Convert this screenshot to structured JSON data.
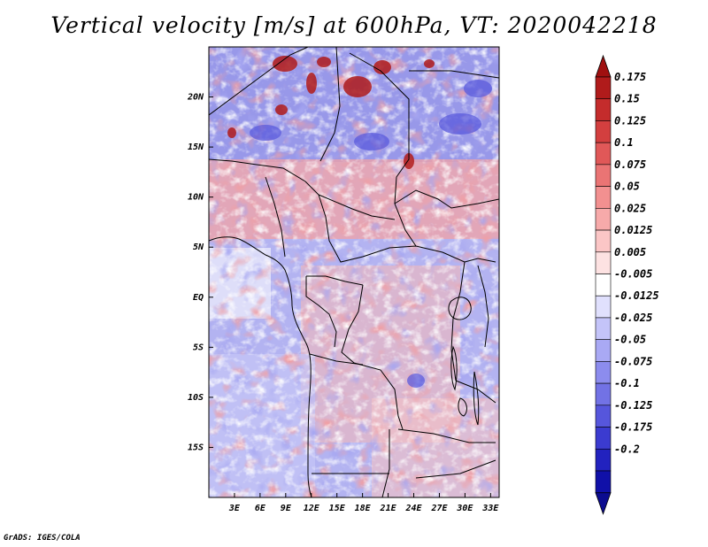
{
  "title": "Vertical velocity [m/s] at 600hPa, VT: 2020042218",
  "credit": "GrADS: IGES/COLA",
  "chart_data": {
    "type": "heatmap",
    "variable": "Vertical velocity",
    "units": "m/s",
    "level": "600hPa",
    "valid_time": "2020042218",
    "lon_range": [
      0,
      34
    ],
    "lat_range": [
      -20,
      25
    ],
    "x_tick_labels": [
      "3E",
      "6E",
      "9E",
      "12E",
      "15E",
      "18E",
      "21E",
      "24E",
      "27E",
      "30E",
      "33E"
    ],
    "x_tick_values": [
      3,
      6,
      9,
      12,
      15,
      18,
      21,
      24,
      27,
      30,
      33
    ],
    "y_tick_labels": [
      "20N",
      "15N",
      "10N",
      "5N",
      "EQ",
      "5S",
      "10S",
      "15S"
    ],
    "y_tick_values": [
      20,
      15,
      10,
      5,
      0,
      -5,
      -10,
      -15
    ],
    "colorbar": {
      "labels": [
        "0.175",
        "0.15",
        "0.125",
        "0.1",
        "0.075",
        "0.05",
        "0.025",
        "0.0125",
        "0.005",
        "-0.005",
        "-0.0125",
        "-0.025",
        "-0.05",
        "-0.075",
        "-0.1",
        "-0.125",
        "-0.175",
        "-0.2"
      ],
      "colors": [
        "#b01b1b",
        "#c42c2c",
        "#d33f3f",
        "#e05858",
        "#ea7474",
        "#f29090",
        "#f7aaaa",
        "#fbc6c6",
        "#fde2e2",
        "#ffffff",
        "#e0e0fd",
        "#c4c4f9",
        "#a9a9f4",
        "#8c8cee",
        "#7272e5",
        "#5656dc",
        "#3b3bd0",
        "#2222bf",
        "#1010a8"
      ],
      "overflow_top_color": "#a01010",
      "overflow_bottom_color": "#0c0c90"
    }
  }
}
